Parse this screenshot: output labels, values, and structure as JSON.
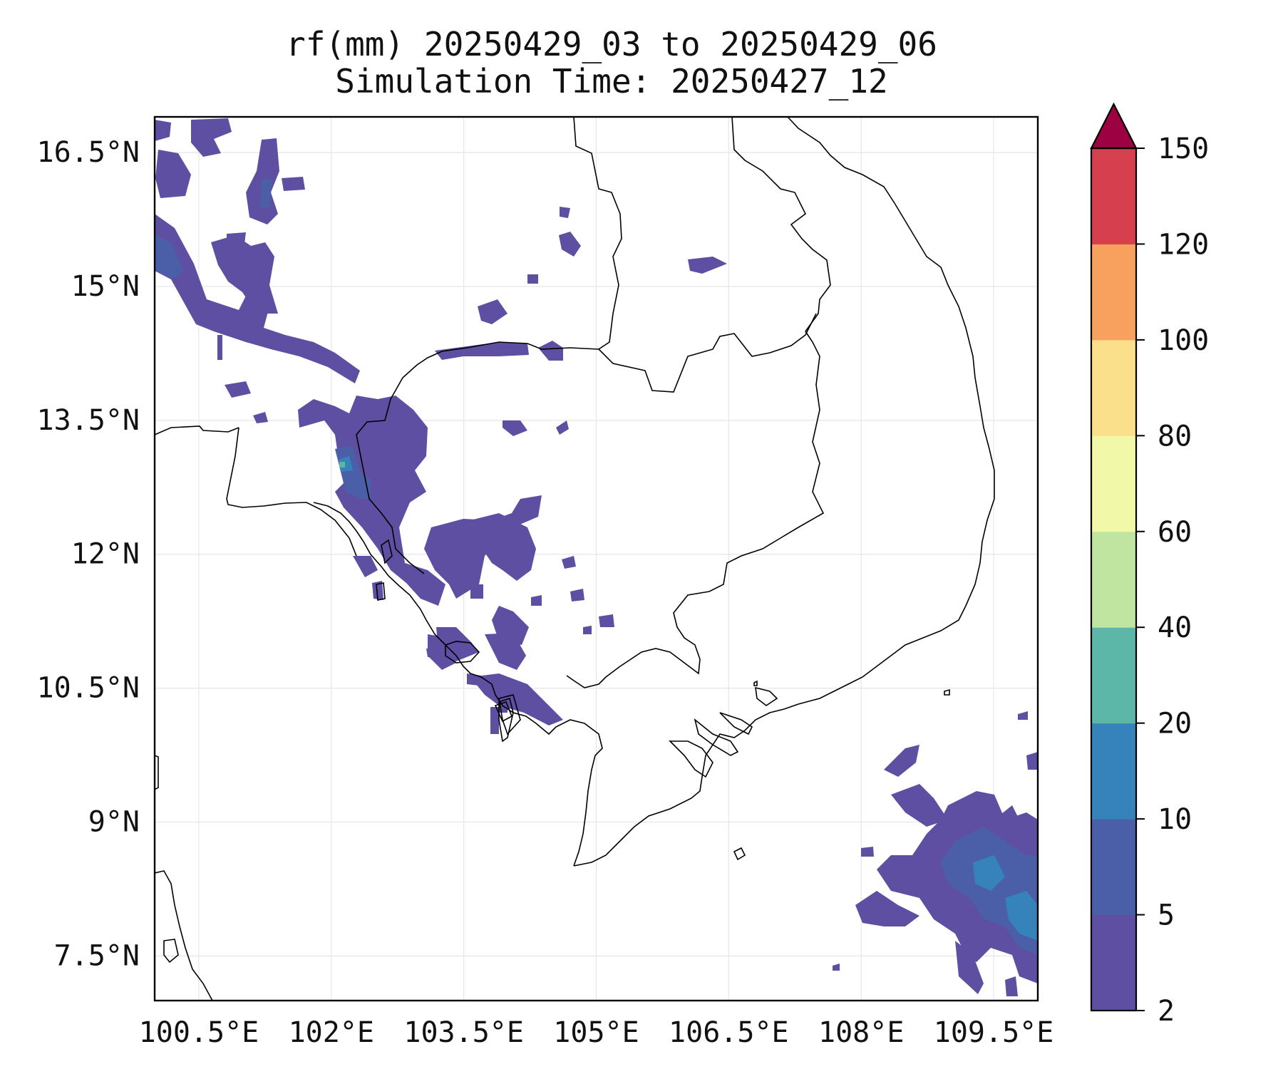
{
  "title": {
    "line1": "rf(mm) 20250429_03 to 20250429_06",
    "line2": "Simulation Time: 20250427_12"
  },
  "map": {
    "lon_range": [
      100.0,
      110.0
    ],
    "lat_range": [
      7.0,
      16.9
    ],
    "lon_ticks": [
      {
        "value": 100.5,
        "label": "100.5°E"
      },
      {
        "value": 102.0,
        "label": "102°E"
      },
      {
        "value": 103.5,
        "label": "103.5°E"
      },
      {
        "value": 105.0,
        "label": "105°E"
      },
      {
        "value": 106.5,
        "label": "106.5°E"
      },
      {
        "value": 108.0,
        "label": "108°E"
      },
      {
        "value": 109.5,
        "label": "109.5°E"
      }
    ],
    "lat_ticks": [
      {
        "value": 7.5,
        "label": "7.5°N"
      },
      {
        "value": 9.0,
        "label": "9°N"
      },
      {
        "value": 10.5,
        "label": "10.5°N"
      },
      {
        "value": 12.0,
        "label": "12°N"
      },
      {
        "value": 13.5,
        "label": "13.5°N"
      },
      {
        "value": 15.0,
        "label": "15°N"
      },
      {
        "value": 16.5,
        "label": "16.5°N"
      }
    ],
    "gridlines": true,
    "regions": [
      "Thailand",
      "Cambodia",
      "Laos",
      "Vietnam",
      "Gulf of Thailand",
      "South China Sea"
    ]
  },
  "colorbar": {
    "levels": [
      2,
      5,
      10,
      20,
      40,
      60,
      80,
      100,
      120,
      150
    ],
    "tick_labels": [
      "2",
      "5",
      "10",
      "20",
      "40",
      "60",
      "80",
      "100",
      "120",
      "150"
    ],
    "colors": [
      "#5e4fa2",
      "#4b5ea8",
      "#3682ba",
      "#5cb7a9",
      "#bfe5a0",
      "#f1f9a9",
      "#fbe08b",
      "#f8a05d",
      "#d6404e"
    ],
    "extend_color": "#9e0142",
    "extend": "max"
  },
  "colors": {
    "light_rain": "#5e4fa2",
    "moderate_rain": "#4b5ea8",
    "heavy_rain": "#3682ba",
    "very_heavy_rain": "#5cb7a9"
  }
}
